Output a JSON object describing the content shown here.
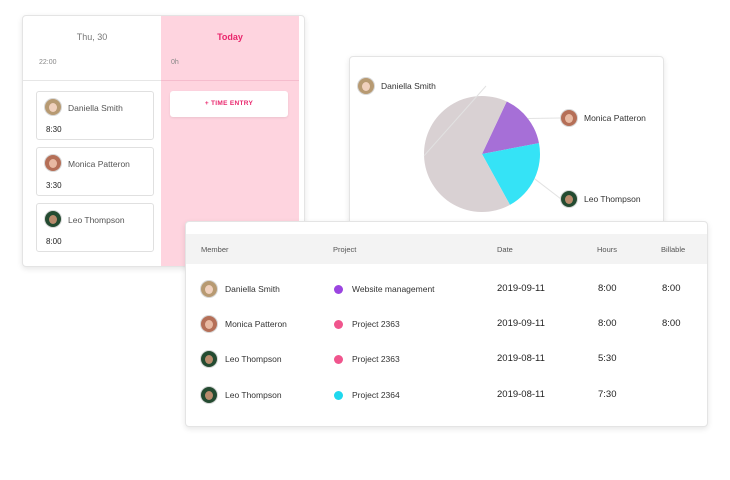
{
  "calendar": {
    "thu": {
      "header": "Thu, 30",
      "time": "22:00"
    },
    "today": {
      "header": "Today",
      "time": "0h",
      "button_label": "+ TIME ENTRY"
    },
    "entries": [
      {
        "name": "Daniella Smith",
        "duration": "8:30",
        "avatar": "daniella"
      },
      {
        "name": "Monica Patteron",
        "duration": "3:30",
        "avatar": "monica"
      },
      {
        "name": "Leo Thompson",
        "duration": "8:00",
        "avatar": "leo"
      }
    ]
  },
  "chart_data": {
    "type": "pie",
    "slices": [
      {
        "label": "Daniella Smith",
        "value": 65,
        "color": "#d9d1d3"
      },
      {
        "label": "Monica Patteron",
        "value": 15,
        "color": "#a66fd7"
      },
      {
        "label": "Leo Thompson",
        "value": 20,
        "color": "#35e3f6"
      }
    ]
  },
  "table": {
    "headers": {
      "member": "Member",
      "project": "Project",
      "date": "Date",
      "hours": "Hours",
      "billable": "Billable"
    },
    "rows": [
      {
        "member": "Daniella Smith",
        "avatar": "daniella",
        "project": "Website management",
        "color": "#9b45e0",
        "date": "2019-09-11",
        "hours": "8:00",
        "billable": "8:00"
      },
      {
        "member": "Monica Patteron",
        "avatar": "monica",
        "project": "Project 2363",
        "color": "#f0558d",
        "date": "2019-09-11",
        "hours": "8:00",
        "billable": "8:00"
      },
      {
        "member": "Leo Thompson",
        "avatar": "leo",
        "project": "Project 2363",
        "color": "#f0558d",
        "date": "2019-08-11",
        "hours": "5:30",
        "billable": ""
      },
      {
        "member": "Leo Thompson",
        "avatar": "leo",
        "project": "Project 2364",
        "color": "#1fd8ee",
        "date": "2019-08-11",
        "hours": "7:30",
        "billable": ""
      }
    ]
  }
}
